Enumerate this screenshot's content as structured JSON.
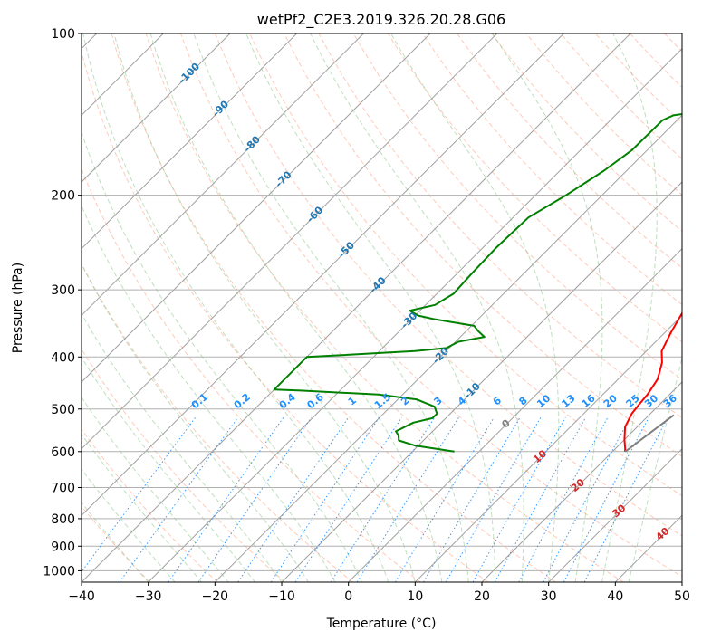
{
  "title": "wetPf2_C2E3.2019.326.20.28.G06",
  "chart_data": {
    "type": "line",
    "title": "wetPf2_C2E3.2019.326.20.28.G06",
    "xlabel": "Temperature (°C)",
    "ylabel": "Pressure (hPa)",
    "xlim": [
      -40,
      50
    ],
    "ylim": [
      1050,
      100
    ],
    "y_scale": "log",
    "x_ticks": [
      "−40",
      "−30",
      "−20",
      "−10",
      "0",
      "10",
      "20",
      "30",
      "40",
      "50"
    ],
    "y_ticks": [
      "100",
      "200",
      "300",
      "400",
      "500",
      "600",
      "700",
      "800",
      "900",
      "1000"
    ],
    "grid": true,
    "series": [
      {
        "color": "#ff0000",
        "points": [
          [
            21.9,
            600
          ],
          [
            21.3,
            590
          ],
          [
            20.0,
            570
          ],
          [
            18.2,
            540
          ],
          [
            17.2,
            510
          ],
          [
            16.9,
            490
          ],
          [
            16.7,
            470
          ],
          [
            15.9,
            440
          ],
          [
            14.1,
            410
          ],
          [
            12.3,
            390
          ],
          [
            10.9,
            360
          ],
          [
            9.6,
            330
          ],
          [
            8.5,
            300
          ],
          [
            7.6,
            280
          ],
          [
            5.9,
            250
          ],
          [
            4.1,
            220
          ],
          [
            3.0,
            200
          ],
          [
            2.2,
            180
          ],
          [
            1.2,
            165
          ],
          [
            -1.1,
            150
          ],
          [
            -2.3,
            135
          ],
          [
            -2.4,
            120
          ],
          [
            -2.1,
            113
          ],
          [
            1.2,
            107
          ],
          [
            3.8,
            103
          ],
          [
            4.5,
            100
          ]
        ]
      },
      {
        "color": "#008000",
        "points": [
          [
            -3.7,
            600
          ],
          [
            -5.9,
            595
          ],
          [
            -10.4,
            585
          ],
          [
            -13.7,
            572
          ],
          [
            -14.5,
            560
          ],
          [
            -15.5,
            550
          ],
          [
            -14.2,
            530
          ],
          [
            -12.0,
            520
          ],
          [
            -12.0,
            510
          ],
          [
            -13.4,
            495
          ],
          [
            -17.1,
            480
          ],
          [
            -23.6,
            470
          ],
          [
            -35.9,
            462
          ],
          [
            -40.0,
            460
          ],
          [
            -40.0,
            400
          ],
          [
            -24.7,
            390
          ],
          [
            -20.4,
            385
          ],
          [
            -19.6,
            375
          ],
          [
            -16.4,
            367
          ],
          [
            -18.2,
            358
          ],
          [
            -19.6,
            350
          ],
          [
            -26.7,
            340
          ],
          [
            -29.5,
            335
          ],
          [
            -31.5,
            328
          ],
          [
            -28.6,
            320
          ],
          [
            -27.5,
            305
          ],
          [
            -27.8,
            280
          ],
          [
            -28.0,
            250
          ],
          [
            -27.7,
            220
          ],
          [
            -25.4,
            200
          ],
          [
            -23.4,
            180
          ],
          [
            -22.3,
            165
          ],
          [
            -22.2,
            145
          ],
          [
            -21.3,
            142
          ],
          [
            -14.1,
            137
          ],
          [
            -11.8,
            127
          ],
          [
            -9.6,
            120
          ],
          [
            -7.4,
            115
          ],
          [
            -5.3,
            110
          ],
          [
            -3.2,
            104
          ],
          [
            -1.4,
            100
          ]
        ]
      },
      {
        "color": "#808080",
        "points": [
          [
            21.9,
            600
          ],
          [
            23.7,
            513
          ]
        ]
      }
    ],
    "isotherm_labels": [
      "-100",
      "-90",
      "-80",
      "-70",
      "-60",
      "-50",
      "-40",
      "-30",
      "-20",
      "-10"
    ],
    "mixing_ratio_labels": [
      "0.1",
      "0.2",
      "0.4",
      "0.6",
      "1",
      "1.5",
      "2",
      "3",
      "4",
      "6",
      "8",
      "10",
      "13",
      "16",
      "20",
      "25",
      "30",
      "36"
    ],
    "moist_adiabat_labels": [
      "0",
      "10",
      "20",
      "30",
      "40"
    ],
    "colors": {
      "temperature": "#ff0000",
      "dewpoint": "#008000",
      "parcel": "#808080",
      "isotherm": "#a0a0a0",
      "isotherm_label": "#1f77b4",
      "dry_adiabat": "#ff9f80",
      "moist_adiabat": "#80c080",
      "mixing_ratio": "#1e90ff",
      "moist_label": "#d62728",
      "zero_label": "#808080",
      "grid": "#b0b0b0"
    }
  }
}
